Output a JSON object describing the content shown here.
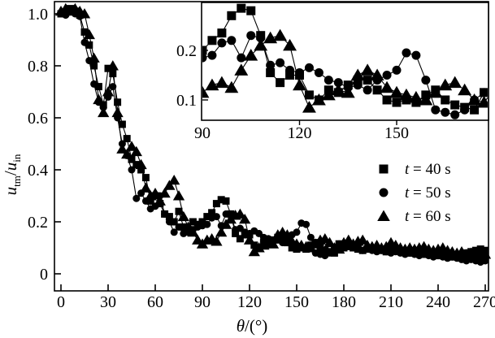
{
  "chart_data": {
    "type": "line",
    "title": "",
    "xlabel": {
      "symbol": "θ",
      "rest": "/(°)"
    },
    "ylabel": {
      "var1": "u",
      "sub1": "tm",
      "divider": "/",
      "var2": "u",
      "sub2": "in"
    },
    "x_axis": {
      "ticks": [
        0,
        30,
        60,
        90,
        120,
        150,
        180,
        210,
        240,
        270
      ],
      "tick_labels": [
        "0",
        "30",
        "60",
        "90",
        "120",
        "150",
        "180",
        "210",
        "240",
        "270"
      ],
      "lim": [
        0,
        270
      ]
    },
    "y_axis": {
      "ticks": [
        0,
        0.2,
        0.4,
        0.6,
        0.8,
        1.0
      ],
      "tick_labels": [
        "0",
        "0.2",
        "0.4",
        "0.6",
        "0.8",
        "1.0"
      ],
      "lim": [
        0,
        1.05
      ]
    },
    "grid": false,
    "legend_position": "right-middle",
    "theta": {
      "start": 0,
      "step": 3
    },
    "series": [
      {
        "name": "t = 40 s",
        "marker": "square",
        "label_var": "t",
        "label_rest": " = 40 s",
        "values": [
          1.0,
          1.005,
          1.02,
          1.01,
          0.995,
          0.93,
          0.88,
          0.8,
          0.72,
          0.65,
          0.79,
          0.77,
          0.66,
          0.575,
          0.52,
          0.44,
          0.42,
          0.4,
          0.37,
          0.28,
          0.3,
          0.27,
          0.23,
          0.22,
          0.2,
          0.24,
          0.18,
          0.17,
          0.2,
          0.19,
          0.2,
          0.22,
          0.235,
          0.27,
          0.285,
          0.28,
          0.23,
          0.155,
          0.135,
          0.15,
          0.15,
          0.11,
          0.1,
          0.12,
          0.115,
          0.13,
          0.14,
          0.14,
          0.12,
          0.1,
          0.095,
          0.1,
          0.095,
          0.11,
          0.12,
          0.1,
          0.09,
          0.085,
          0.08,
          0.115,
          0.1,
          0.105,
          0.1,
          0.095,
          0.09,
          0.095,
          0.1,
          0.095,
          0.09,
          0.085,
          0.09,
          0.095,
          0.09,
          0.085,
          0.08,
          0.085,
          0.08,
          0.075,
          0.08,
          0.075,
          0.07,
          0.075,
          0.07,
          0.065,
          0.07,
          0.075,
          0.08,
          0.085,
          0.09,
          0.095,
          0.09
        ]
      },
      {
        "name": "t = 50 s",
        "marker": "circle",
        "label_var": "t",
        "label_rest": " = 50 s",
        "values": [
          1.0,
          0.995,
          1.01,
          1.0,
          0.99,
          0.89,
          0.82,
          0.73,
          0.66,
          0.64,
          0.68,
          0.72,
          0.6,
          0.5,
          0.455,
          0.4,
          0.29,
          0.31,
          0.28,
          0.25,
          0.26,
          0.3,
          0.23,
          0.2,
          0.16,
          0.18,
          0.155,
          0.16,
          0.17,
          0.18,
          0.185,
          0.19,
          0.215,
          0.22,
          0.185,
          0.23,
          0.225,
          0.17,
          0.175,
          0.16,
          0.155,
          0.165,
          0.155,
          0.14,
          0.135,
          0.125,
          0.13,
          0.12,
          0.14,
          0.15,
          0.16,
          0.195,
          0.19,
          0.14,
          0.08,
          0.075,
          0.07,
          0.08,
          0.1,
          0.115,
          0.11,
          0.105,
          0.1,
          0.095,
          0.09,
          0.095,
          0.09,
          0.085,
          0.09,
          0.085,
          0.08,
          0.085,
          0.08,
          0.075,
          0.08,
          0.075,
          0.07,
          0.075,
          0.07,
          0.065,
          0.07,
          0.065,
          0.06,
          0.065,
          0.06,
          0.055,
          0.05,
          0.055,
          0.05,
          0.045,
          0.05
        ]
      },
      {
        "name": "t = 60 s",
        "marker": "triangle",
        "label_var": "t",
        "label_rest": " = 60 s",
        "values": [
          1.01,
          1.02,
          1.01,
          1.02,
          1.01,
          1.0,
          0.92,
          0.83,
          0.67,
          0.62,
          0.7,
          0.8,
          0.62,
          0.48,
          0.46,
          0.49,
          0.47,
          0.42,
          0.33,
          0.3,
          0.31,
          0.28,
          0.31,
          0.34,
          0.36,
          0.3,
          0.22,
          0.18,
          0.16,
          0.13,
          0.115,
          0.13,
          0.135,
          0.125,
          0.16,
          0.19,
          0.21,
          0.225,
          0.23,
          0.21,
          0.13,
          0.085,
          0.1,
          0.11,
          0.12,
          0.115,
          0.15,
          0.16,
          0.15,
          0.125,
          0.115,
          0.11,
          0.105,
          0.1,
          0.115,
          0.13,
          0.135,
          0.12,
          0.1,
          0.095,
          0.12,
          0.13,
          0.115,
          0.125,
          0.13,
          0.11,
          0.105,
          0.11,
          0.1,
          0.105,
          0.12,
          0.11,
          0.1,
          0.095,
          0.1,
          0.095,
          0.1,
          0.105,
          0.095,
          0.09,
          0.095,
          0.1,
          0.09,
          0.085,
          0.08,
          0.085,
          0.075,
          0.08,
          0.075,
          0.07,
          0.075
        ]
      }
    ],
    "inset": {
      "x_ticks": [
        90,
        120,
        150
      ],
      "x_tick_labels": [
        "90",
        "120",
        "150"
      ],
      "y_ticks": [
        0.1,
        0.2
      ],
      "y_tick_labels": [
        "0.1",
        "0.2"
      ],
      "xlim": [
        90,
        178.4
      ],
      "ylim": [
        0.059,
        0.297
      ]
    },
    "colors": {
      "foreground": "#000000",
      "background": "#ffffff"
    }
  }
}
